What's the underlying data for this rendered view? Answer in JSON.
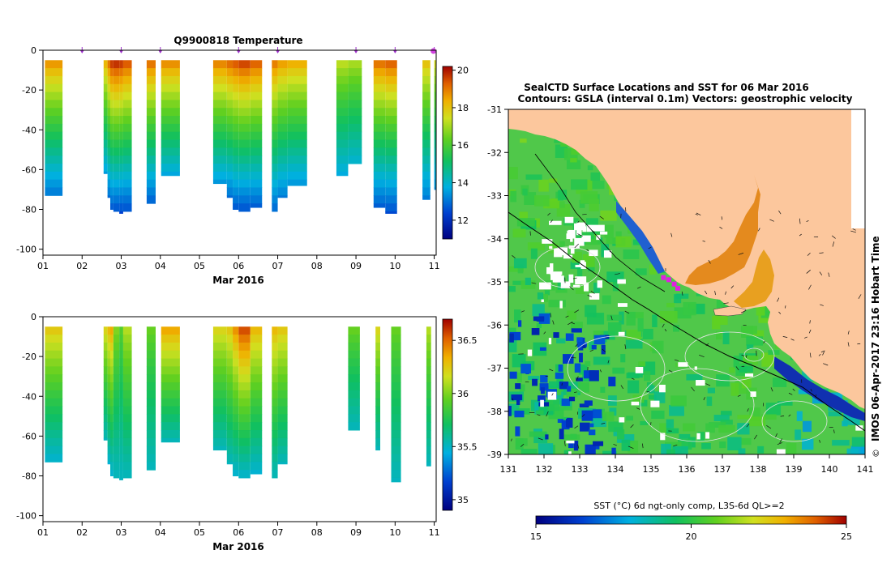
{
  "colors": {
    "land": "#fcc79d",
    "profile_marker": "#9b30c8",
    "track": "#000000",
    "contour": "#e6e6e6"
  },
  "chart_data": [
    {
      "type": "heatmap",
      "id": "temperature_section",
      "title": "Q9900818  Temperature",
      "xlabel": "Mar 2016",
      "ylabel": "",
      "x_ticks": [
        "01",
        "02",
        "03",
        "04",
        "05",
        "06",
        "07",
        "08",
        "09",
        "10",
        "11"
      ],
      "y_ticks": [
        0,
        -20,
        -40,
        -60,
        -80,
        -100
      ],
      "xlim": [
        1,
        11.05
      ],
      "ylim": [
        -103,
        0
      ],
      "colorbar": {
        "ticks": [
          12,
          14,
          16,
          18,
          20
        ],
        "range": [
          11,
          20.2
        ]
      },
      "profile_days": [
        2.0,
        3.0,
        4.0,
        6.0,
        7.0,
        9.0,
        10.0,
        11.0
      ],
      "columns": [
        {
          "x0": 1.05,
          "x1": 1.5,
          "max_depth": -73,
          "surface": 18.6,
          "deep": 12.9
        },
        {
          "x0": 2.25,
          "x1": 2.55,
          "max_depth": -5,
          "surface": 18.0,
          "deep": 18.0
        },
        {
          "x0": 2.55,
          "x1": 2.65,
          "max_depth": -62,
          "surface": 18.2,
          "deep": 13.4
        },
        {
          "x0": 2.65,
          "x1": 2.72,
          "max_depth": -74,
          "surface": 19.0,
          "deep": 12.8
        },
        {
          "x0": 2.72,
          "x1": 2.8,
          "max_depth": -80,
          "surface": 19.6,
          "deep": 12.5
        },
        {
          "x0": 2.8,
          "x1": 2.95,
          "max_depth": -81,
          "surface": 19.7,
          "deep": 12.4
        },
        {
          "x0": 2.95,
          "x1": 3.05,
          "max_depth": -82,
          "surface": 19.6,
          "deep": 12.3
        },
        {
          "x0": 3.05,
          "x1": 3.27,
          "max_depth": -81,
          "surface": 19.3,
          "deep": 12.4
        },
        {
          "x0": 3.65,
          "x1": 3.88,
          "max_depth": -77,
          "surface": 19.0,
          "deep": 12.6
        },
        {
          "x0": 4.02,
          "x1": 4.5,
          "max_depth": -63,
          "surface": 18.7,
          "deep": 13.5
        },
        {
          "x0": 5.35,
          "x1": 5.7,
          "max_depth": -67,
          "surface": 18.8,
          "deep": 13.3
        },
        {
          "x0": 5.7,
          "x1": 5.85,
          "max_depth": -74,
          "surface": 19.1,
          "deep": 12.8
        },
        {
          "x0": 5.85,
          "x1": 6.0,
          "max_depth": -80,
          "surface": 19.3,
          "deep": 12.5
        },
        {
          "x0": 6.0,
          "x1": 6.3,
          "max_depth": -81,
          "surface": 19.5,
          "deep": 12.4
        },
        {
          "x0": 6.3,
          "x1": 6.6,
          "max_depth": -79,
          "surface": 19.2,
          "deep": 12.6
        },
        {
          "x0": 6.85,
          "x1": 7.0,
          "max_depth": -81,
          "surface": 18.9,
          "deep": 12.7
        },
        {
          "x0": 7.0,
          "x1": 7.25,
          "max_depth": -74,
          "surface": 18.5,
          "deep": 13.0
        },
        {
          "x0": 7.25,
          "x1": 7.75,
          "max_depth": -68,
          "surface": 18.3,
          "deep": 13.3
        },
        {
          "x0": 8.5,
          "x1": 8.8,
          "max_depth": -63,
          "surface": 17.2,
          "deep": 13.6
        },
        {
          "x0": 8.8,
          "x1": 9.15,
          "max_depth": -57,
          "surface": 17.0,
          "deep": 13.8
        },
        {
          "x0": 9.45,
          "x1": 9.75,
          "max_depth": -79,
          "surface": 19.0,
          "deep": 12.6
        },
        {
          "x0": 9.75,
          "x1": 10.05,
          "max_depth": -82,
          "surface": 19.2,
          "deep": 12.4
        },
        {
          "x0": 10.7,
          "x1": 10.9,
          "max_depth": -75,
          "surface": 18.0,
          "deep": 13.0
        },
        {
          "x0": 11.0,
          "x1": 11.05,
          "max_depth": -70,
          "surface": 17.5,
          "deep": 13.2
        }
      ]
    },
    {
      "type": "heatmap",
      "id": "salinity_section",
      "title": "",
      "xlabel": "Mar 2016",
      "ylabel": "",
      "x_ticks": [
        "01",
        "02",
        "03",
        "04",
        "05",
        "06",
        "07",
        "08",
        "09",
        "10",
        "11"
      ],
      "y_ticks": [
        0,
        -20,
        -40,
        -60,
        -80,
        -100
      ],
      "xlim": [
        1,
        11.05
      ],
      "ylim": [
        -103,
        0
      ],
      "colorbar": {
        "ticks": [
          35,
          35.5,
          36,
          36.5
        ],
        "range": [
          34.9,
          36.7
        ]
      },
      "columns": [
        {
          "x0": 1.05,
          "x1": 1.5,
          "max_depth": -73,
          "surface": 36.25,
          "deep": 35.45
        },
        {
          "x0": 2.25,
          "x1": 2.55,
          "max_depth": -5,
          "surface": 35.9,
          "deep": 35.9
        },
        {
          "x0": 2.55,
          "x1": 2.65,
          "max_depth": -62,
          "surface": 36.2,
          "deep": 35.5
        },
        {
          "x0": 2.65,
          "x1": 2.72,
          "max_depth": -74,
          "surface": 36.3,
          "deep": 35.45
        },
        {
          "x0": 2.72,
          "x1": 2.8,
          "max_depth": -80,
          "surface": 36.35,
          "deep": 35.45
        },
        {
          "x0": 2.8,
          "x1": 2.95,
          "max_depth": -81,
          "surface": 36.0,
          "deep": 35.5
        },
        {
          "x0": 2.95,
          "x1": 3.05,
          "max_depth": -82,
          "surface": 35.9,
          "deep": 35.5
        },
        {
          "x0": 3.05,
          "x1": 3.27,
          "max_depth": -81,
          "surface": 36.1,
          "deep": 35.5
        },
        {
          "x0": 3.65,
          "x1": 3.88,
          "max_depth": -77,
          "surface": 35.95,
          "deep": 35.5
        },
        {
          "x0": 4.02,
          "x1": 4.5,
          "max_depth": -63,
          "surface": 36.35,
          "deep": 35.5
        },
        {
          "x0": 5.35,
          "x1": 5.7,
          "max_depth": -67,
          "surface": 36.2,
          "deep": 35.5
        },
        {
          "x0": 5.7,
          "x1": 5.85,
          "max_depth": -74,
          "surface": 36.25,
          "deep": 35.5
        },
        {
          "x0": 5.85,
          "x1": 6.0,
          "max_depth": -80,
          "surface": 36.4,
          "deep": 35.45
        },
        {
          "x0": 6.0,
          "x1": 6.3,
          "max_depth": -81,
          "surface": 36.55,
          "deep": 35.45
        },
        {
          "x0": 6.3,
          "x1": 6.6,
          "max_depth": -79,
          "surface": 36.3,
          "deep": 35.45
        },
        {
          "x0": 6.85,
          "x1": 7.0,
          "max_depth": -81,
          "surface": 36.3,
          "deep": 35.5
        },
        {
          "x0": 7.0,
          "x1": 7.25,
          "max_depth": -74,
          "surface": 36.25,
          "deep": 35.5
        },
        {
          "x0": 8.8,
          "x1": 9.1,
          "max_depth": -57,
          "surface": 35.95,
          "deep": 35.5
        },
        {
          "x0": 9.5,
          "x1": 9.62,
          "max_depth": -67,
          "surface": 36.2,
          "deep": 35.5
        },
        {
          "x0": 9.9,
          "x1": 10.15,
          "max_depth": -83,
          "surface": 35.95,
          "deep": 35.5
        },
        {
          "x0": 10.8,
          "x1": 10.92,
          "max_depth": -75,
          "surface": 36.1,
          "deep": 35.5
        }
      ]
    },
    {
      "type": "heatmap",
      "id": "sst_map",
      "title": "SealCTD Surface Locations and SST for 06 Mar 2016",
      "subtitle": "Contours: GSLA (interval 0.1m) Vectors: geostrophic velocity",
      "side_label": "IMOS 06-Apr-2017 23:16 Hobart Time",
      "copyright_symbol": "©",
      "xlabel": "",
      "ylabel": "",
      "x_ticks": [
        "131",
        "132",
        "133",
        "134",
        "135",
        "136",
        "137",
        "138",
        "139",
        "140",
        "141"
      ],
      "y_ticks": [
        "-31",
        "-32",
        "-33",
        "-34",
        "-35",
        "-36",
        "-37",
        "-38",
        "-39"
      ],
      "xlim": [
        131,
        141
      ],
      "ylim": [
        -39,
        -31
      ],
      "colorbar": {
        "label": "SST (°C) 6d ngt-only comp, L3S-6d QL>=2",
        "ticks": [
          "15",
          "20",
          "25"
        ],
        "range": [
          15,
          25
        ]
      },
      "seal_positions": [
        {
          "lon": 135.35,
          "lat": -34.9
        },
        {
          "lon": 135.5,
          "lat": -34.95
        },
        {
          "lon": 135.65,
          "lat": -35.05
        },
        {
          "lon": 135.75,
          "lat": -35.15
        }
      ]
    }
  ]
}
